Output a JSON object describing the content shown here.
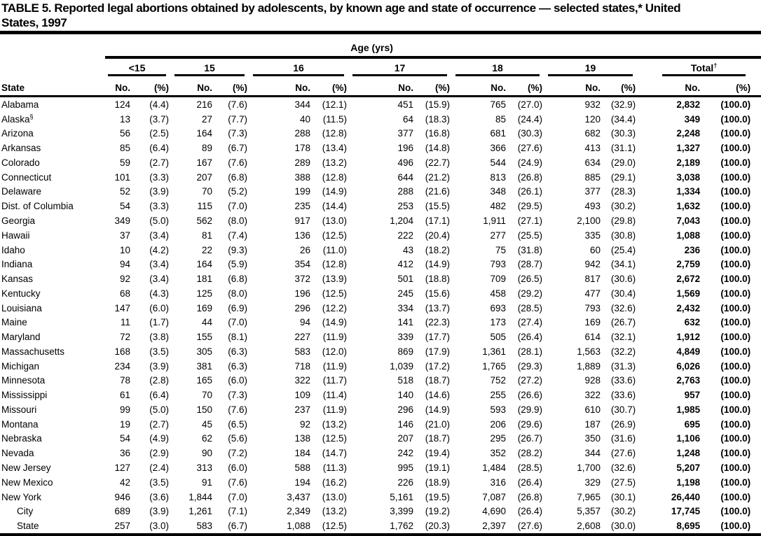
{
  "title": {
    "line1": "TABLE 5. Reported legal abortions obtained by adolescents, by known age and state of occurrence — selected states,* United",
    "line2": "States, 1997"
  },
  "header": {
    "state_col": "State",
    "age_spanner": "Age (yrs)",
    "groups": [
      "<15",
      "15",
      "16",
      "17",
      "18",
      "19"
    ],
    "total_label": "Total",
    "total_marker": "†",
    "sub_no": "No.",
    "sub_pct": "(%)"
  },
  "rows": [
    {
      "state": "Alabama",
      "marker": "",
      "indent": false,
      "values": [
        [
          "124",
          "(4.4)"
        ],
        [
          "216",
          "(7.6)"
        ],
        [
          "344",
          "(12.1)"
        ],
        [
          "451",
          "(15.9)"
        ],
        [
          "765",
          "(27.0)"
        ],
        [
          "932",
          "(32.9)"
        ],
        [
          "2,832",
          "(100.0)"
        ]
      ]
    },
    {
      "state": "Alaska",
      "marker": "§",
      "indent": false,
      "values": [
        [
          "13",
          "(3.7)"
        ],
        [
          "27",
          "(7.7)"
        ],
        [
          "40",
          "(11.5)"
        ],
        [
          "64",
          "(18.3)"
        ],
        [
          "85",
          "(24.4)"
        ],
        [
          "120",
          "(34.4)"
        ],
        [
          "349",
          "(100.0)"
        ]
      ]
    },
    {
      "state": "Arizona",
      "marker": "",
      "indent": false,
      "values": [
        [
          "56",
          "(2.5)"
        ],
        [
          "164",
          "(7.3)"
        ],
        [
          "288",
          "(12.8)"
        ],
        [
          "377",
          "(16.8)"
        ],
        [
          "681",
          "(30.3)"
        ],
        [
          "682",
          "(30.3)"
        ],
        [
          "2,248",
          "(100.0)"
        ]
      ]
    },
    {
      "state": "Arkansas",
      "marker": "",
      "indent": false,
      "values": [
        [
          "85",
          "(6.4)"
        ],
        [
          "89",
          "(6.7)"
        ],
        [
          "178",
          "(13.4)"
        ],
        [
          "196",
          "(14.8)"
        ],
        [
          "366",
          "(27.6)"
        ],
        [
          "413",
          "(31.1)"
        ],
        [
          "1,327",
          "(100.0)"
        ]
      ]
    },
    {
      "state": "Colorado",
      "marker": "",
      "indent": false,
      "values": [
        [
          "59",
          "(2.7)"
        ],
        [
          "167",
          "(7.6)"
        ],
        [
          "289",
          "(13.2)"
        ],
        [
          "496",
          "(22.7)"
        ],
        [
          "544",
          "(24.9)"
        ],
        [
          "634",
          "(29.0)"
        ],
        [
          "2,189",
          "(100.0)"
        ]
      ]
    },
    {
      "state": "Connecticut",
      "marker": "",
      "indent": false,
      "values": [
        [
          "101",
          "(3.3)"
        ],
        [
          "207",
          "(6.8)"
        ],
        [
          "388",
          "(12.8)"
        ],
        [
          "644",
          "(21.2)"
        ],
        [
          "813",
          "(26.8)"
        ],
        [
          "885",
          "(29.1)"
        ],
        [
          "3,038",
          "(100.0)"
        ]
      ]
    },
    {
      "state": "Delaware",
      "marker": "",
      "indent": false,
      "values": [
        [
          "52",
          "(3.9)"
        ],
        [
          "70",
          "(5.2)"
        ],
        [
          "199",
          "(14.9)"
        ],
        [
          "288",
          "(21.6)"
        ],
        [
          "348",
          "(26.1)"
        ],
        [
          "377",
          "(28.3)"
        ],
        [
          "1,334",
          "(100.0)"
        ]
      ]
    },
    {
      "state": "Dist. of Columbia",
      "marker": "",
      "indent": false,
      "values": [
        [
          "54",
          "(3.3)"
        ],
        [
          "115",
          "(7.0)"
        ],
        [
          "235",
          "(14.4)"
        ],
        [
          "253",
          "(15.5)"
        ],
        [
          "482",
          "(29.5)"
        ],
        [
          "493",
          "(30.2)"
        ],
        [
          "1,632",
          "(100.0)"
        ]
      ]
    },
    {
      "state": "Georgia",
      "marker": "",
      "indent": false,
      "values": [
        [
          "349",
          "(5.0)"
        ],
        [
          "562",
          "(8.0)"
        ],
        [
          "917",
          "(13.0)"
        ],
        [
          "1,204",
          "(17.1)"
        ],
        [
          "1,911",
          "(27.1)"
        ],
        [
          "2,100",
          "(29.8)"
        ],
        [
          "7,043",
          "(100.0)"
        ]
      ]
    },
    {
      "state": "Hawaii",
      "marker": "",
      "indent": false,
      "values": [
        [
          "37",
          "(3.4)"
        ],
        [
          "81",
          "(7.4)"
        ],
        [
          "136",
          "(12.5)"
        ],
        [
          "222",
          "(20.4)"
        ],
        [
          "277",
          "(25.5)"
        ],
        [
          "335",
          "(30.8)"
        ],
        [
          "1,088",
          "(100.0)"
        ]
      ]
    },
    {
      "state": "Idaho",
      "marker": "",
      "indent": false,
      "values": [
        [
          "10",
          "(4.2)"
        ],
        [
          "22",
          "(9.3)"
        ],
        [
          "26",
          "(11.0)"
        ],
        [
          "43",
          "(18.2)"
        ],
        [
          "75",
          "(31.8)"
        ],
        [
          "60",
          "(25.4)"
        ],
        [
          "236",
          "(100.0)"
        ]
      ]
    },
    {
      "state": "Indiana",
      "marker": "",
      "indent": false,
      "values": [
        [
          "94",
          "(3.4)"
        ],
        [
          "164",
          "(5.9)"
        ],
        [
          "354",
          "(12.8)"
        ],
        [
          "412",
          "(14.9)"
        ],
        [
          "793",
          "(28.7)"
        ],
        [
          "942",
          "(34.1)"
        ],
        [
          "2,759",
          "(100.0)"
        ]
      ]
    },
    {
      "state": "Kansas",
      "marker": "",
      "indent": false,
      "values": [
        [
          "92",
          "(3.4)"
        ],
        [
          "181",
          "(6.8)"
        ],
        [
          "372",
          "(13.9)"
        ],
        [
          "501",
          "(18.8)"
        ],
        [
          "709",
          "(26.5)"
        ],
        [
          "817",
          "(30.6)"
        ],
        [
          "2,672",
          "(100.0)"
        ]
      ]
    },
    {
      "state": "Kentucky",
      "marker": "",
      "indent": false,
      "values": [
        [
          "68",
          "(4.3)"
        ],
        [
          "125",
          "(8.0)"
        ],
        [
          "196",
          "(12.5)"
        ],
        [
          "245",
          "(15.6)"
        ],
        [
          "458",
          "(29.2)"
        ],
        [
          "477",
          "(30.4)"
        ],
        [
          "1,569",
          "(100.0)"
        ]
      ]
    },
    {
      "state": "Louisiana",
      "marker": "",
      "indent": false,
      "values": [
        [
          "147",
          "(6.0)"
        ],
        [
          "169",
          "(6.9)"
        ],
        [
          "296",
          "(12.2)"
        ],
        [
          "334",
          "(13.7)"
        ],
        [
          "693",
          "(28.5)"
        ],
        [
          "793",
          "(32.6)"
        ],
        [
          "2,432",
          "(100.0)"
        ]
      ]
    },
    {
      "state": "Maine",
      "marker": "",
      "indent": false,
      "values": [
        [
          "11",
          "(1.7)"
        ],
        [
          "44",
          "(7.0)"
        ],
        [
          "94",
          "(14.9)"
        ],
        [
          "141",
          "(22.3)"
        ],
        [
          "173",
          "(27.4)"
        ],
        [
          "169",
          "(26.7)"
        ],
        [
          "632",
          "(100.0)"
        ]
      ]
    },
    {
      "state": "Maryland",
      "marker": "",
      "indent": false,
      "values": [
        [
          "72",
          "(3.8)"
        ],
        [
          "155",
          "(8.1)"
        ],
        [
          "227",
          "(11.9)"
        ],
        [
          "339",
          "(17.7)"
        ],
        [
          "505",
          "(26.4)"
        ],
        [
          "614",
          "(32.1)"
        ],
        [
          "1,912",
          "(100.0)"
        ]
      ]
    },
    {
      "state": "Massachusetts",
      "marker": "",
      "indent": false,
      "values": [
        [
          "168",
          "(3.5)"
        ],
        [
          "305",
          "(6.3)"
        ],
        [
          "583",
          "(12.0)"
        ],
        [
          "869",
          "(17.9)"
        ],
        [
          "1,361",
          "(28.1)"
        ],
        [
          "1,563",
          "(32.2)"
        ],
        [
          "4,849",
          "(100.0)"
        ]
      ]
    },
    {
      "state": "Michigan",
      "marker": "",
      "indent": false,
      "values": [
        [
          "234",
          "(3.9)"
        ],
        [
          "381",
          "(6.3)"
        ],
        [
          "718",
          "(11.9)"
        ],
        [
          "1,039",
          "(17.2)"
        ],
        [
          "1,765",
          "(29.3)"
        ],
        [
          "1,889",
          "(31.3)"
        ],
        [
          "6,026",
          "(100.0)"
        ]
      ]
    },
    {
      "state": "Minnesota",
      "marker": "",
      "indent": false,
      "values": [
        [
          "78",
          "(2.8)"
        ],
        [
          "165",
          "(6.0)"
        ],
        [
          "322",
          "(11.7)"
        ],
        [
          "518",
          "(18.7)"
        ],
        [
          "752",
          "(27.2)"
        ],
        [
          "928",
          "(33.6)"
        ],
        [
          "2,763",
          "(100.0)"
        ]
      ]
    },
    {
      "state": "Mississippi",
      "marker": "",
      "indent": false,
      "values": [
        [
          "61",
          "(6.4)"
        ],
        [
          "70",
          "(7.3)"
        ],
        [
          "109",
          "(11.4)"
        ],
        [
          "140",
          "(14.6)"
        ],
        [
          "255",
          "(26.6)"
        ],
        [
          "322",
          "(33.6)"
        ],
        [
          "957",
          "(100.0)"
        ]
      ]
    },
    {
      "state": "Missouri",
      "marker": "",
      "indent": false,
      "values": [
        [
          "99",
          "(5.0)"
        ],
        [
          "150",
          "(7.6)"
        ],
        [
          "237",
          "(11.9)"
        ],
        [
          "296",
          "(14.9)"
        ],
        [
          "593",
          "(29.9)"
        ],
        [
          "610",
          "(30.7)"
        ],
        [
          "1,985",
          "(100.0)"
        ]
      ]
    },
    {
      "state": "Montana",
      "marker": "",
      "indent": false,
      "values": [
        [
          "19",
          "(2.7)"
        ],
        [
          "45",
          "(6.5)"
        ],
        [
          "92",
          "(13.2)"
        ],
        [
          "146",
          "(21.0)"
        ],
        [
          "206",
          "(29.6)"
        ],
        [
          "187",
          "(26.9)"
        ],
        [
          "695",
          "(100.0)"
        ]
      ]
    },
    {
      "state": "Nebraska",
      "marker": "",
      "indent": false,
      "values": [
        [
          "54",
          "(4.9)"
        ],
        [
          "62",
          "(5.6)"
        ],
        [
          "138",
          "(12.5)"
        ],
        [
          "207",
          "(18.7)"
        ],
        [
          "295",
          "(26.7)"
        ],
        [
          "350",
          "(31.6)"
        ],
        [
          "1,106",
          "(100.0)"
        ]
      ]
    },
    {
      "state": "Nevada",
      "marker": "",
      "indent": false,
      "values": [
        [
          "36",
          "(2.9)"
        ],
        [
          "90",
          "(7.2)"
        ],
        [
          "184",
          "(14.7)"
        ],
        [
          "242",
          "(19.4)"
        ],
        [
          "352",
          "(28.2)"
        ],
        [
          "344",
          "(27.6)"
        ],
        [
          "1,248",
          "(100.0)"
        ]
      ]
    },
    {
      "state": "New Jersey",
      "marker": "",
      "indent": false,
      "values": [
        [
          "127",
          "(2.4)"
        ],
        [
          "313",
          "(6.0)"
        ],
        [
          "588",
          "(11.3)"
        ],
        [
          "995",
          "(19.1)"
        ],
        [
          "1,484",
          "(28.5)"
        ],
        [
          "1,700",
          "(32.6)"
        ],
        [
          "5,207",
          "(100.0)"
        ]
      ]
    },
    {
      "state": "New Mexico",
      "marker": "",
      "indent": false,
      "values": [
        [
          "42",
          "(3.5)"
        ],
        [
          "91",
          "(7.6)"
        ],
        [
          "194",
          "(16.2)"
        ],
        [
          "226",
          "(18.9)"
        ],
        [
          "316",
          "(26.4)"
        ],
        [
          "329",
          "(27.5)"
        ],
        [
          "1,198",
          "(100.0)"
        ]
      ]
    },
    {
      "state": "New York",
      "marker": "",
      "indent": false,
      "values": [
        [
          "946",
          "(3.6)"
        ],
        [
          "1,844",
          "(7.0)"
        ],
        [
          "3,437",
          "(13.0)"
        ],
        [
          "5,161",
          "(19.5)"
        ],
        [
          "7,087",
          "(26.8)"
        ],
        [
          "7,965",
          "(30.1)"
        ],
        [
          "26,440",
          "(100.0)"
        ]
      ]
    },
    {
      "state": "City",
      "marker": "",
      "indent": true,
      "values": [
        [
          "689",
          "(3.9)"
        ],
        [
          "1,261",
          "(7.1)"
        ],
        [
          "2,349",
          "(13.2)"
        ],
        [
          "3,399",
          "(19.2)"
        ],
        [
          "4,690",
          "(26.4)"
        ],
        [
          "5,357",
          "(30.2)"
        ],
        [
          "17,745",
          "(100.0)"
        ]
      ]
    },
    {
      "state": "State",
      "marker": "",
      "indent": true,
      "values": [
        [
          "257",
          "(3.0)"
        ],
        [
          "583",
          "(6.7)"
        ],
        [
          "1,088",
          "(12.5)"
        ],
        [
          "1,762",
          "(20.3)"
        ],
        [
          "2,397",
          "(27.6)"
        ],
        [
          "2,608",
          "(30.0)"
        ],
        [
          "8,695",
          "(100.0)"
        ]
      ]
    }
  ]
}
